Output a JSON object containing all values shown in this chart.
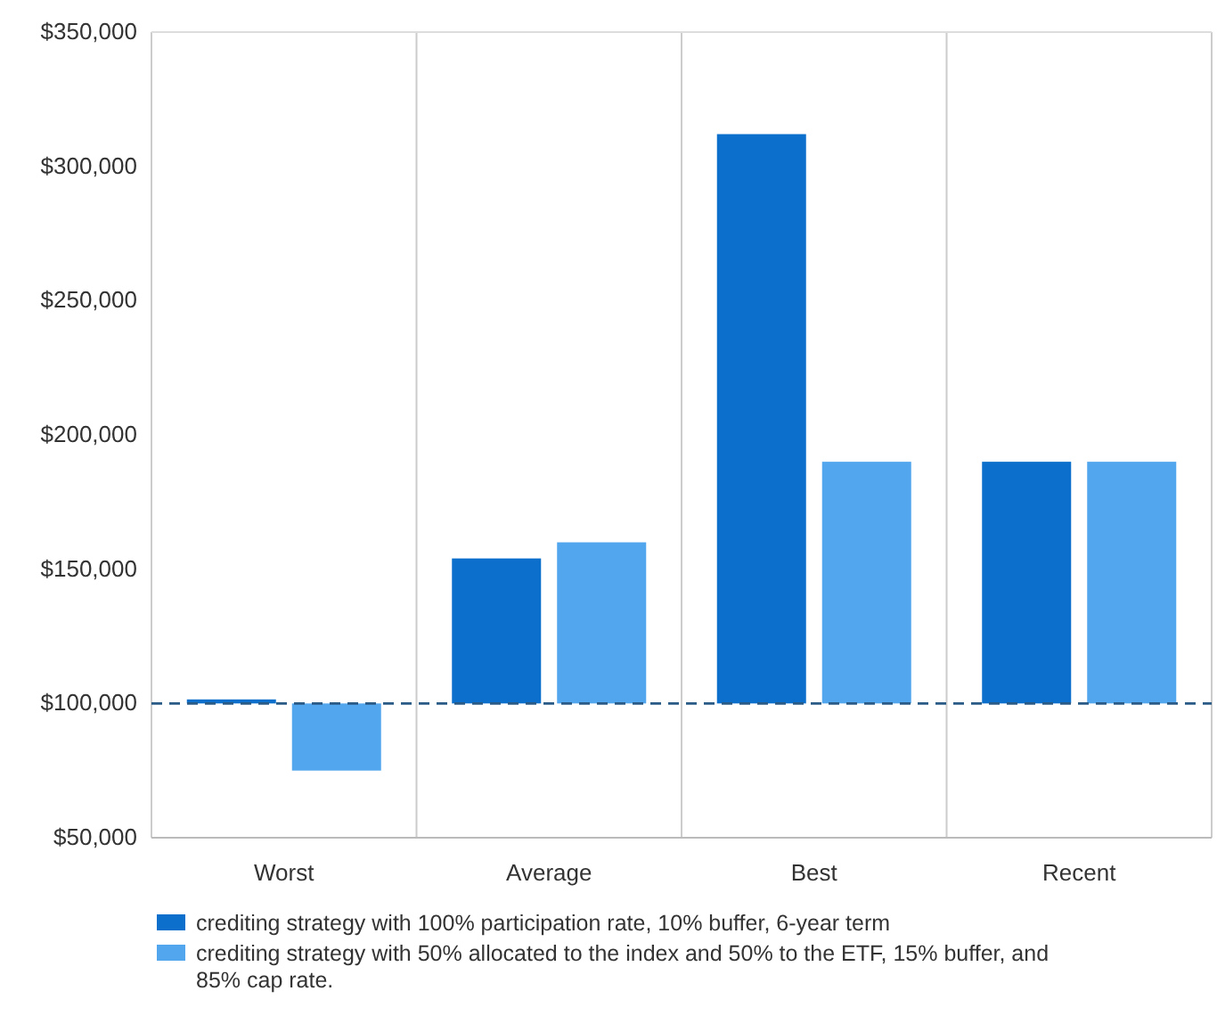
{
  "chart_data": {
    "type": "bar",
    "categories": [
      "Worst",
      "Average",
      "Best",
      "Recent"
    ],
    "series": [
      {
        "name": "crediting strategy with 100% participation rate, 10% buffer, 6-year term",
        "color": "#0b6fcb",
        "values": [
          1500,
          54000,
          212000,
          90000
        ],
        "base": [
          100000,
          100000,
          100000,
          100000
        ]
      },
      {
        "name": "crediting strategy with 50% allocated to the index and 50% to the ETF, 15% buffer, and 85% cap rate.",
        "color": "#52a6ee",
        "values": [
          -25000,
          60000,
          90000,
          90000
        ],
        "base": [
          100000,
          100000,
          100000,
          100000
        ]
      }
    ],
    "ylim": [
      50000,
      350000
    ],
    "yticks": [
      {
        "value": 50000,
        "label": "$50,000"
      },
      {
        "value": 100000,
        "label": "$100,000"
      },
      {
        "value": 150000,
        "label": "$150,000"
      },
      {
        "value": 200000,
        "label": "$200,000"
      },
      {
        "value": 250000,
        "label": "$250,000"
      },
      {
        "value": 300000,
        "label": "$300,000"
      },
      {
        "value": 350000,
        "label": "$350,000"
      }
    ],
    "ref_lines": [
      {
        "axis": "y",
        "value": 100000,
        "color": "#2a5a86",
        "line_style": "dashed"
      }
    ],
    "grid": "x",
    "legend": "bottom"
  }
}
